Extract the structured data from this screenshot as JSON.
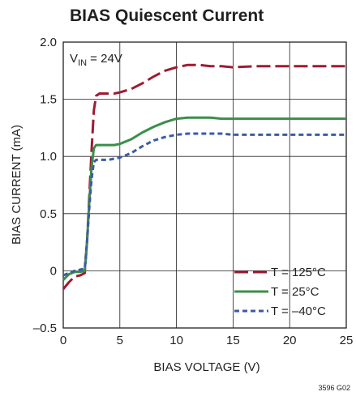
{
  "chart_data": {
    "type": "line",
    "title": "BIAS Quiescent Current",
    "condition": {
      "prefix": "V",
      "sub": "IN",
      "suffix": " = 24V"
    },
    "xlabel": "BIAS VOLTAGE (V)",
    "ylabel": "BIAS CURRENT (mA)",
    "xlim": [
      0,
      25
    ],
    "ylim": [
      -0.5,
      2.0
    ],
    "xticks": [
      0,
      5,
      10,
      15,
      20,
      25
    ],
    "yticks": [
      -0.5,
      0,
      0.5,
      1.0,
      1.5,
      2.0
    ],
    "xtick_labels": [
      "0",
      "5",
      "10",
      "15",
      "20",
      "25"
    ],
    "ytick_labels": [
      "–0.5",
      "0",
      "0.5",
      "1.0",
      "1.5",
      "2.0"
    ],
    "grid": true,
    "legend_position": "bottom-right",
    "figure_code": "3596 G02",
    "series": [
      {
        "name": "T = 125°C",
        "color": "#9e1b32",
        "dash": "long-dash",
        "x": [
          0,
          0.5,
          1.0,
          1.5,
          1.9,
          2.1,
          2.3,
          2.5,
          2.7,
          2.9,
          3.2,
          3.6,
          4.0,
          4.5,
          5.0,
          6.0,
          7.0,
          8.0,
          9.0,
          10.0,
          11.0,
          12.0,
          13.0,
          14.0,
          15.0,
          17.0,
          20.0,
          22.0,
          25.0
        ],
        "y": [
          -0.16,
          -0.1,
          -0.05,
          -0.04,
          -0.02,
          0.25,
          0.65,
          1.05,
          1.4,
          1.53,
          1.55,
          1.55,
          1.55,
          1.55,
          1.56,
          1.59,
          1.64,
          1.7,
          1.75,
          1.78,
          1.8,
          1.8,
          1.79,
          1.79,
          1.78,
          1.79,
          1.79,
          1.79,
          1.79
        ]
      },
      {
        "name": "T = 25°C",
        "color": "#3a8f4a",
        "dash": "solid",
        "x": [
          0,
          0.5,
          1.0,
          1.5,
          1.9,
          2.1,
          2.3,
          2.5,
          2.7,
          2.9,
          3.2,
          3.6,
          4.0,
          4.5,
          5.0,
          6.0,
          7.0,
          8.0,
          9.0,
          10.0,
          11.0,
          12.0,
          13.0,
          14.0,
          15.0,
          17.0,
          20.0,
          22.0,
          25.0
        ],
        "y": [
          -0.08,
          -0.03,
          -0.01,
          -0.01,
          0.0,
          0.25,
          0.6,
          0.9,
          1.07,
          1.1,
          1.1,
          1.1,
          1.1,
          1.1,
          1.11,
          1.15,
          1.21,
          1.26,
          1.3,
          1.33,
          1.34,
          1.34,
          1.34,
          1.33,
          1.33,
          1.33,
          1.33,
          1.33,
          1.33
        ]
      },
      {
        "name": "T = –40°C",
        "color": "#3c5aa6",
        "dash": "short-dash",
        "x": [
          0,
          0.5,
          1.0,
          1.5,
          1.9,
          2.1,
          2.3,
          2.5,
          2.7,
          2.9,
          3.2,
          3.6,
          4.0,
          4.5,
          5.0,
          6.0,
          7.0,
          8.0,
          9.0,
          10.0,
          11.0,
          12.0,
          13.0,
          14.0,
          15.0,
          17.0,
          20.0,
          22.0,
          25.0
        ],
        "y": [
          -0.04,
          -0.02,
          0.0,
          0.01,
          0.02,
          0.25,
          0.55,
          0.8,
          0.95,
          0.97,
          0.97,
          0.97,
          0.97,
          0.98,
          0.99,
          1.03,
          1.09,
          1.14,
          1.17,
          1.19,
          1.2,
          1.2,
          1.2,
          1.2,
          1.19,
          1.19,
          1.19,
          1.19,
          1.19
        ]
      }
    ]
  }
}
